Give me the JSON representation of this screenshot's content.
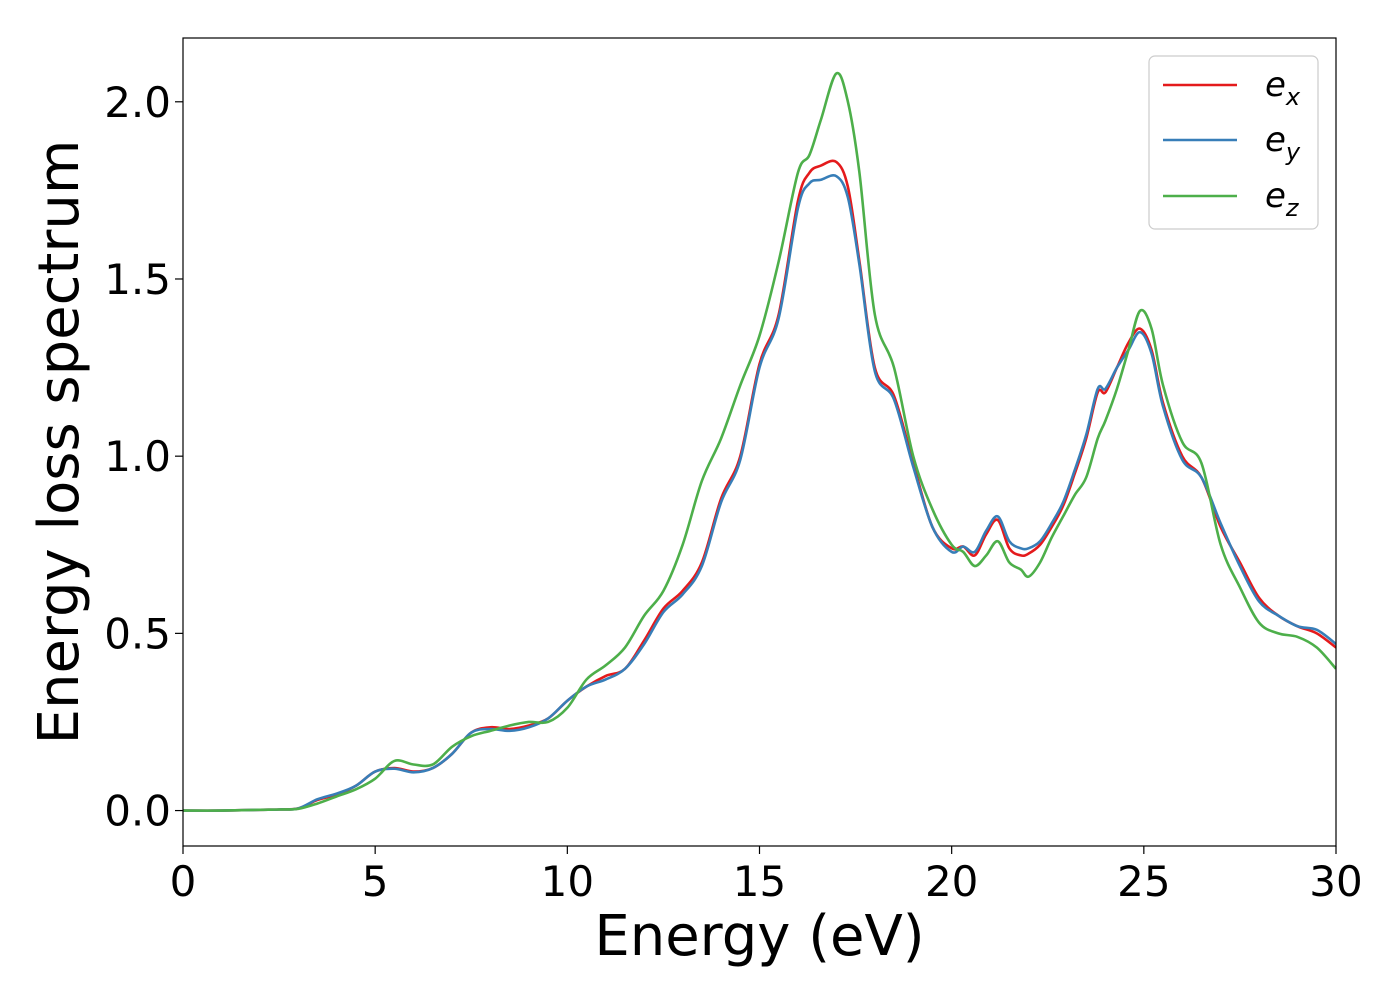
{
  "chart_data": {
    "type": "line",
    "title": "",
    "xlabel": "Energy (eV)",
    "ylabel": "Energy loss spectrum",
    "xlim": [
      0,
      30
    ],
    "ylim": [
      -0.1,
      2.18
    ],
    "xticks": [
      0,
      5,
      10,
      15,
      20,
      25,
      30
    ],
    "xtick_labels": [
      "0",
      "5",
      "10",
      "15",
      "20",
      "25",
      "30"
    ],
    "yticks": [
      0.0,
      0.5,
      1.0,
      1.5,
      2.0
    ],
    "ytick_labels": [
      "0.0",
      "0.5",
      "1.0",
      "1.5",
      "2.0"
    ],
    "grid": false,
    "legend_position": "top-right",
    "series": [
      {
        "name": "e_x",
        "color": "#e41a1c",
        "x": [
          0,
          1,
          2,
          2.5,
          3,
          3.5,
          4,
          4.5,
          5,
          5.5,
          6,
          6.5,
          7,
          7.5,
          8,
          8.5,
          9,
          9.5,
          10,
          10.5,
          11,
          11.5,
          12,
          12.5,
          13,
          13.5,
          14,
          14.5,
          15,
          15.5,
          16,
          16.3,
          16.6,
          17,
          17.3,
          17.6,
          18,
          18.5,
          19,
          19.5,
          20,
          20.3,
          20.6,
          20.9,
          21.2,
          21.5,
          21.8,
          22,
          22.3,
          22.6,
          22.9,
          23.2,
          23.5,
          23.8,
          24,
          24.3,
          24.6,
          24.9,
          25.2,
          25.5,
          26,
          26.5,
          27,
          27.5,
          28,
          28.5,
          29,
          29.5,
          30
        ],
        "y": [
          0,
          0,
          0.002,
          0.003,
          0.006,
          0.03,
          0.045,
          0.07,
          0.11,
          0.12,
          0.11,
          0.12,
          0.16,
          0.22,
          0.235,
          0.23,
          0.24,
          0.26,
          0.31,
          0.35,
          0.38,
          0.4,
          0.48,
          0.57,
          0.62,
          0.7,
          0.88,
          1.0,
          1.26,
          1.4,
          1.72,
          1.8,
          1.82,
          1.83,
          1.76,
          1.55,
          1.25,
          1.17,
          0.98,
          0.8,
          0.74,
          0.745,
          0.72,
          0.78,
          0.82,
          0.74,
          0.72,
          0.725,
          0.75,
          0.8,
          0.86,
          0.95,
          1.05,
          1.18,
          1.18,
          1.25,
          1.32,
          1.36,
          1.3,
          1.15,
          1.0,
          0.94,
          0.8,
          0.7,
          0.6,
          0.55,
          0.52,
          0.5,
          0.46
        ]
      },
      {
        "name": "e_y",
        "color": "#377eb8",
        "x": [
          0,
          1,
          2,
          2.5,
          3,
          3.5,
          4,
          4.5,
          5,
          5.5,
          6,
          6.5,
          7,
          7.5,
          8,
          8.5,
          9,
          9.5,
          10,
          10.5,
          11,
          11.5,
          12,
          12.5,
          13,
          13.5,
          14,
          14.5,
          15,
          15.5,
          16,
          16.3,
          16.6,
          17,
          17.3,
          17.6,
          18,
          18.5,
          19,
          19.5,
          20,
          20.3,
          20.6,
          20.9,
          21.2,
          21.5,
          21.8,
          22,
          22.3,
          22.6,
          22.9,
          23.2,
          23.5,
          23.8,
          24,
          24.3,
          24.6,
          24.9,
          25.2,
          25.5,
          26,
          26.5,
          27,
          27.5,
          28,
          28.5,
          29,
          29.5,
          30
        ],
        "y": [
          0,
          0,
          0.002,
          0.003,
          0.006,
          0.032,
          0.048,
          0.07,
          0.11,
          0.118,
          0.108,
          0.12,
          0.16,
          0.22,
          0.23,
          0.225,
          0.235,
          0.26,
          0.31,
          0.35,
          0.37,
          0.4,
          0.47,
          0.56,
          0.61,
          0.69,
          0.87,
          0.99,
          1.25,
          1.39,
          1.7,
          1.77,
          1.78,
          1.79,
          1.73,
          1.54,
          1.24,
          1.16,
          0.97,
          0.8,
          0.73,
          0.745,
          0.73,
          0.79,
          0.83,
          0.76,
          0.74,
          0.74,
          0.76,
          0.81,
          0.87,
          0.96,
          1.06,
          1.19,
          1.19,
          1.25,
          1.3,
          1.35,
          1.29,
          1.14,
          0.99,
          0.94,
          0.81,
          0.69,
          0.59,
          0.55,
          0.52,
          0.51,
          0.47
        ]
      },
      {
        "name": "e_z",
        "color": "#4daf4a",
        "x": [
          0,
          1,
          2,
          2.5,
          3,
          3.5,
          4,
          4.5,
          5,
          5.5,
          6,
          6.5,
          7,
          7.5,
          8,
          8.5,
          9,
          9.5,
          10,
          10.5,
          11,
          11.5,
          12,
          12.5,
          13,
          13.5,
          14,
          14.5,
          15,
          15.5,
          16,
          16.3,
          16.6,
          17,
          17.3,
          17.6,
          18,
          18.5,
          19,
          19.5,
          20,
          20.3,
          20.6,
          20.9,
          21.2,
          21.5,
          21.8,
          22,
          22.3,
          22.6,
          22.9,
          23.2,
          23.5,
          23.8,
          24,
          24.3,
          24.6,
          24.9,
          25.2,
          25.5,
          26,
          26.5,
          27,
          27.5,
          28,
          28.5,
          29,
          29.5,
          30
        ],
        "y": [
          0,
          0,
          0.002,
          0.003,
          0.005,
          0.02,
          0.04,
          0.06,
          0.09,
          0.14,
          0.13,
          0.13,
          0.18,
          0.21,
          0.225,
          0.24,
          0.25,
          0.25,
          0.29,
          0.37,
          0.41,
          0.46,
          0.55,
          0.62,
          0.75,
          0.93,
          1.05,
          1.2,
          1.34,
          1.55,
          1.8,
          1.85,
          1.95,
          2.08,
          2.0,
          1.8,
          1.4,
          1.25,
          1.0,
          0.85,
          0.75,
          0.73,
          0.69,
          0.72,
          0.76,
          0.7,
          0.68,
          0.66,
          0.7,
          0.77,
          0.83,
          0.89,
          0.94,
          1.05,
          1.1,
          1.19,
          1.3,
          1.41,
          1.36,
          1.2,
          1.04,
          0.98,
          0.75,
          0.63,
          0.53,
          0.5,
          0.49,
          0.46,
          0.4
        ]
      }
    ]
  },
  "legend": [
    {
      "base": "e",
      "sub": "x"
    },
    {
      "base": "e",
      "sub": "y"
    },
    {
      "base": "e",
      "sub": "z"
    }
  ]
}
